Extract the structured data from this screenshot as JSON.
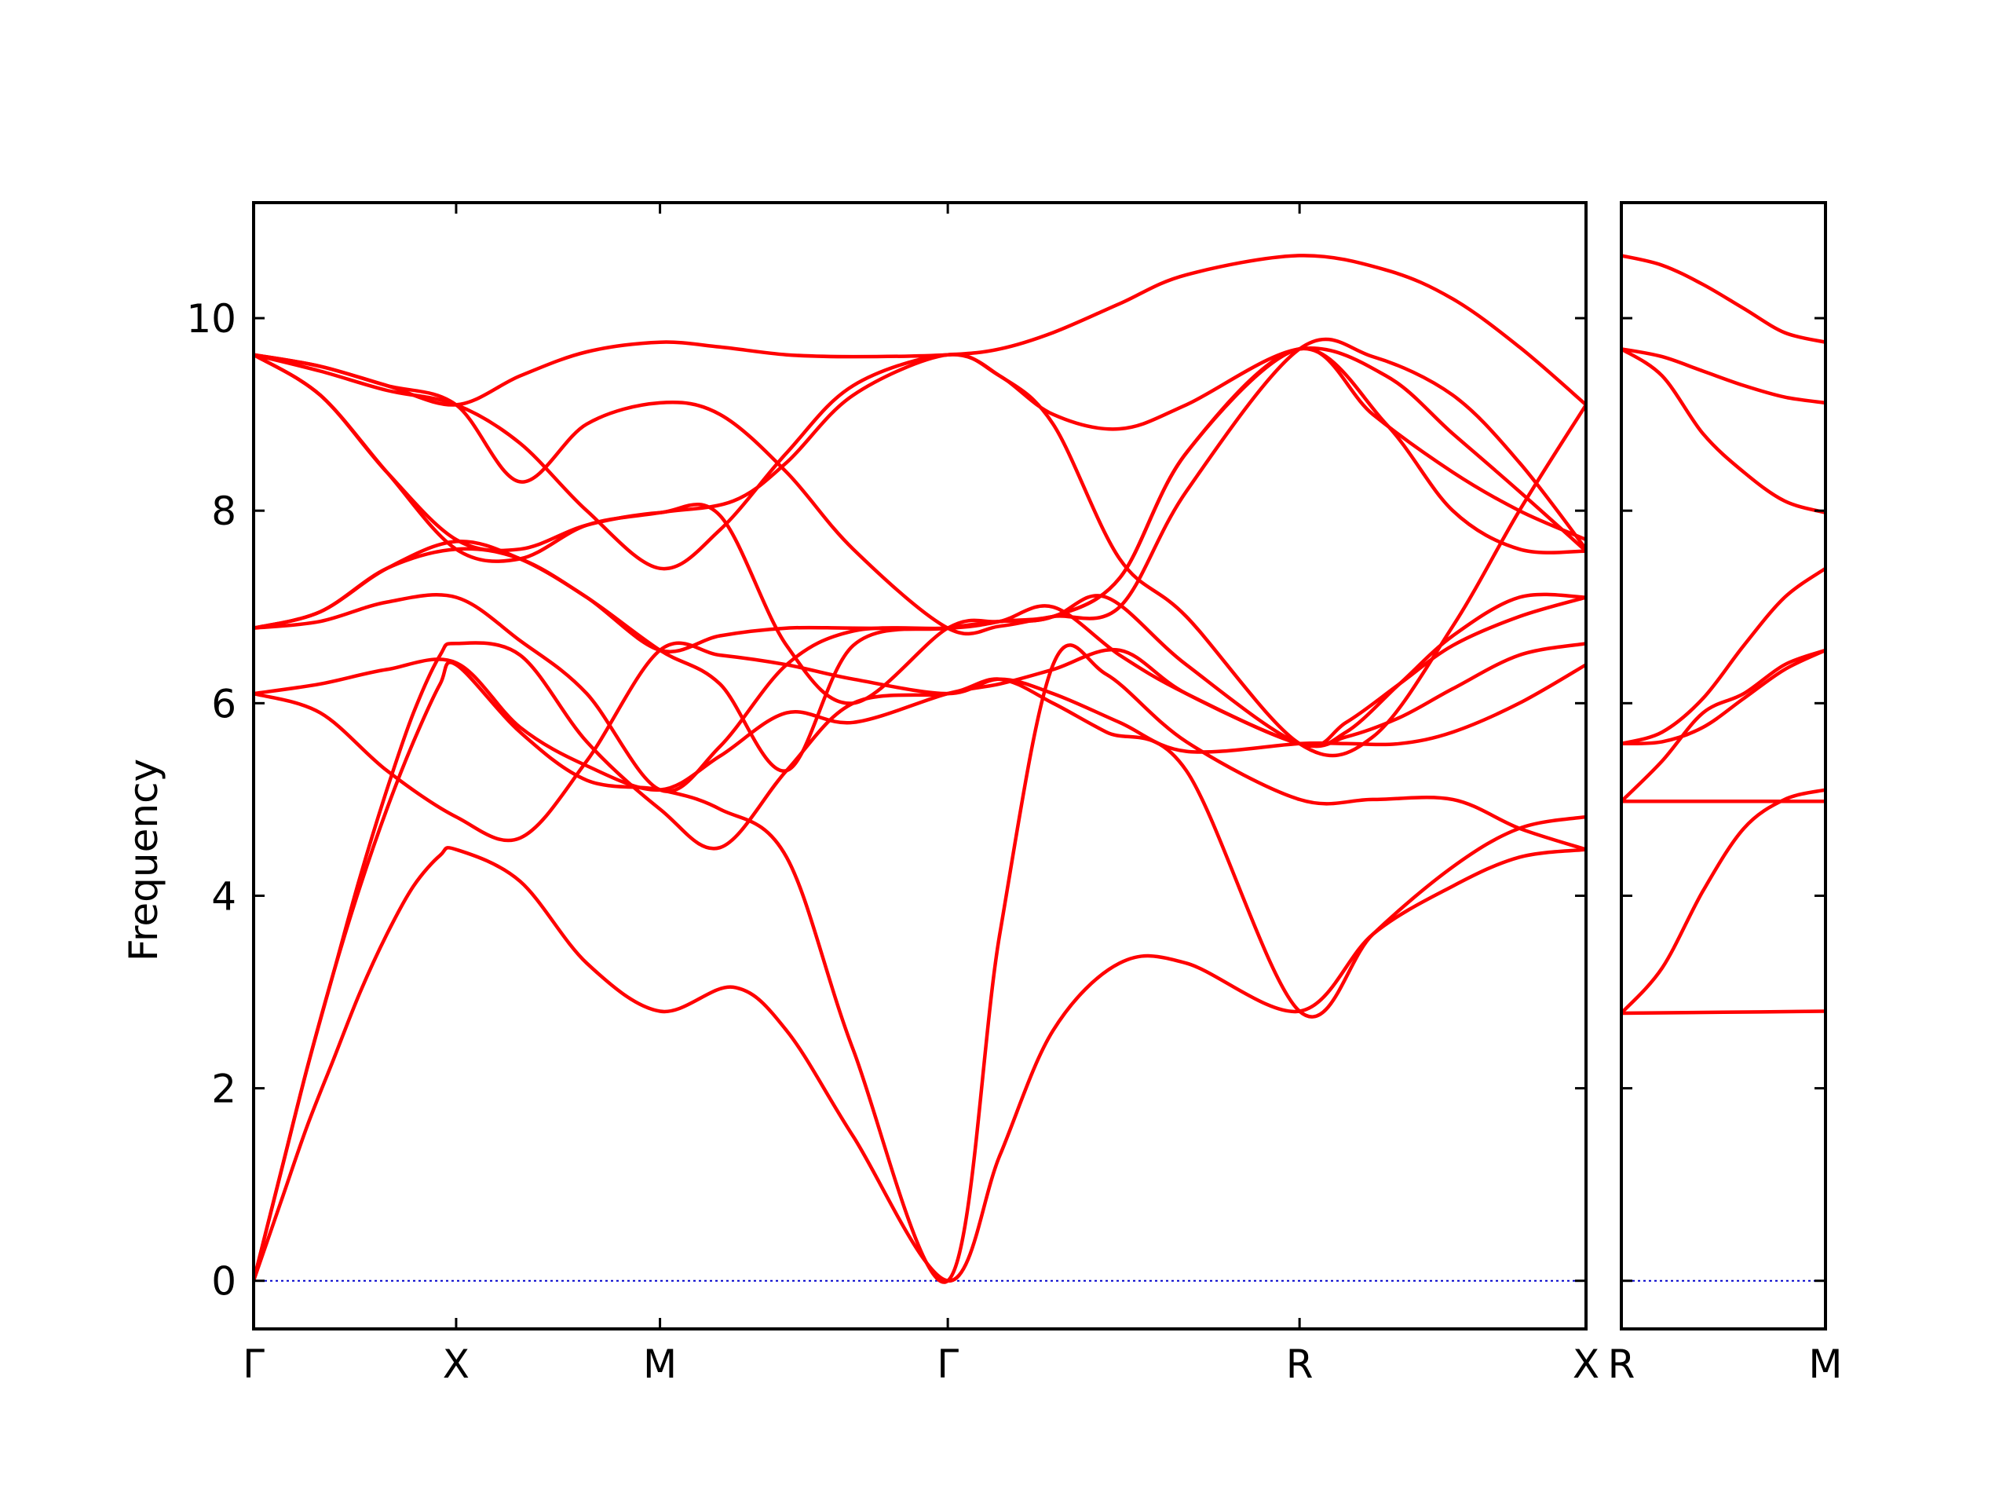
{
  "chart_data": {
    "type": "line",
    "ylabel": "Frequency",
    "ylim": [
      -0.5,
      11.2
    ],
    "y_ticks": [
      "0",
      "2",
      "4",
      "6",
      "8",
      "10"
    ],
    "grid": false,
    "colors": {
      "band": "#ff0000",
      "zero_line": "#0000cc",
      "frame": "#000000"
    },
    "panels": [
      {
        "id": "main",
        "xlim": [
          0,
          1000
        ],
        "high_symmetry_points": [
          {
            "label": "Γ",
            "x": 0
          },
          {
            "label": "X",
            "x": 152
          },
          {
            "label": "M",
            "x": 305
          },
          {
            "label": "Γ",
            "x": 521
          },
          {
            "label": "R",
            "x": 785
          },
          {
            "label": "X",
            "x": 1000
          }
        ],
        "bands": [
          {
            "x": [
              0,
              20,
              40,
              60,
              80,
              100,
              120,
              140,
              152,
              200,
              250,
              305,
              360,
              400,
              450,
              521,
              560,
              600,
              650,
              700,
              785,
              840,
              900,
              950,
              1000
            ],
            "y": [
              0,
              0.8,
              1.6,
              2.3,
              3.0,
              3.6,
              4.1,
              4.42,
              4.48,
              4.15,
              3.3,
              2.8,
              3.05,
              2.6,
              1.5,
              0,
              1.3,
              2.6,
              3.3,
              3.3,
              2.8,
              3.6,
              4.1,
              4.4,
              4.48
            ]
          },
          {
            "x": [
              0,
              20,
              40,
              60,
              80,
              100,
              120,
              140,
              152,
              200,
              250,
              305,
              350,
              400,
              450,
              521,
              560,
              600,
              640,
              700,
              785,
              840,
              900,
              950,
              1000
            ],
            "y": [
              0,
              1.1,
              2.2,
              3.2,
              4.1,
              4.9,
              5.6,
              6.2,
              6.4,
              5.7,
              5.2,
              5.1,
              4.9,
              4.4,
              2.4,
              0,
              3.6,
              6.4,
              6.3,
              5.6,
              5.0,
              5.0,
              5.0,
              4.7,
              4.48
            ]
          },
          {
            "x": [
              0,
              20,
              40,
              60,
              80,
              100,
              120,
              140,
              152,
              200,
              250,
              305,
              350,
              400,
              450,
              521,
              560,
              600,
              640,
              700,
              785,
              840,
              900,
              950,
              1000
            ],
            "y": [
              0,
              1.1,
              2.2,
              3.2,
              4.2,
              5.1,
              5.9,
              6.5,
              6.62,
              6.5,
              5.6,
              4.9,
              4.5,
              5.3,
              6.0,
              6.1,
              6.25,
              6.0,
              5.7,
              5.3,
              2.8,
              3.6,
              4.3,
              4.7,
              4.82
            ]
          },
          {
            "x": [
              0,
              50,
              100,
              152,
              200,
              250,
              305,
              350,
              400,
              450,
              521,
              560,
              600,
              650,
              700,
              785,
              820,
              860,
              900,
              950,
              1000
            ],
            "y": [
              6.1,
              5.9,
              5.3,
              4.82,
              4.6,
              5.4,
              6.55,
              6.5,
              6.4,
              6.25,
              6.1,
              6.25,
              6.1,
              5.8,
              5.5,
              5.58,
              5.58,
              5.58,
              5.7,
              6.0,
              6.4
            ]
          },
          {
            "x": [
              0,
              50,
              100,
              152,
              200,
              250,
              305,
              350,
              400,
              450,
              521,
              560,
              600,
              650,
              700,
              785,
              820,
              860,
              900,
              950,
              1000
            ],
            "y": [
              6.1,
              6.2,
              6.35,
              6.42,
              5.75,
              5.35,
              5.1,
              5.45,
              5.9,
              5.8,
              6.1,
              6.2,
              6.35,
              6.55,
              6.1,
              5.58,
              5.65,
              5.85,
              6.15,
              6.5,
              6.62
            ]
          },
          {
            "x": [
              0,
              50,
              100,
              152,
              200,
              250,
              305,
              350,
              400,
              450,
              521,
              560,
              600,
              640,
              700,
              785,
              820,
              860,
              900,
              950,
              1000
            ],
            "y": [
              6.78,
              6.85,
              7.05,
              7.1,
              6.65,
              6.1,
              5.1,
              5.55,
              6.4,
              6.75,
              6.78,
              6.85,
              6.9,
              7.1,
              6.4,
              5.58,
              5.8,
              6.2,
              6.6,
              6.9,
              7.1
            ]
          },
          {
            "x": [
              0,
              50,
              100,
              152,
              200,
              250,
              305,
              350,
              400,
              450,
              521,
              560,
              600,
              650,
              700,
              785,
              820,
              860,
              900,
              950,
              1000
            ],
            "y": [
              6.78,
              6.95,
              7.4,
              7.6,
              7.5,
              7.1,
              6.55,
              6.7,
              6.78,
              6.78,
              6.78,
              6.85,
              7.0,
              6.5,
              6.1,
              5.58,
              5.7,
              6.2,
              6.7,
              7.1,
              7.1
            ]
          },
          {
            "x": [
              0,
              50,
              100,
              152,
              200,
              250,
              305,
              350,
              400,
              450,
              521,
              560,
              600,
              650,
              700,
              785,
              840,
              900,
              950,
              1000
            ],
            "y": [
              6.78,
              6.95,
              7.4,
              7.68,
              7.5,
              7.1,
              6.55,
              6.2,
              5.3,
              6.6,
              6.78,
              6.85,
              6.9,
              7.3,
              8.6,
              9.68,
              9.0,
              8.4,
              8.0,
              7.7
            ]
          },
          {
            "x": [
              0,
              50,
              100,
              152,
              200,
              250,
              305,
              350,
              400,
              450,
              521,
              560,
              600,
              650,
              700,
              785,
              850,
              900,
              950,
              1000
            ],
            "y": [
              9.62,
              9.2,
              8.4,
              7.7,
              7.6,
              7.85,
              7.98,
              7.95,
              6.6,
              6.0,
              6.78,
              6.85,
              6.9,
              7.3,
              8.6,
              9.68,
              8.9,
              8.0,
              7.6,
              7.58
            ]
          },
          {
            "x": [
              0,
              50,
              100,
              152,
              200,
              250,
              305,
              360,
              400,
              450,
              521,
              560,
              600,
              650,
              700,
              785,
              850,
              900,
              950,
              1000
            ],
            "y": [
              9.62,
              9.2,
              8.4,
              7.6,
              7.5,
              7.85,
              7.98,
              8.1,
              8.5,
              9.2,
              9.62,
              9.4,
              9.0,
              8.85,
              9.1,
              9.68,
              9.4,
              8.8,
              8.2,
              7.58
            ]
          },
          {
            "x": [
              0,
              50,
              100,
              152,
              200,
              250,
              305,
              350,
              400,
              450,
              521,
              560,
              600,
              650,
              700,
              785,
              840,
              900,
              950,
              1000
            ],
            "y": [
              9.62,
              9.45,
              9.25,
              9.1,
              8.7,
              8.0,
              7.4,
              7.8,
              8.6,
              9.3,
              9.62,
              9.4,
              8.9,
              7.5,
              6.9,
              5.58,
              5.65,
              6.8,
              8.0,
              9.1
            ]
          },
          {
            "x": [
              0,
              50,
              100,
              152,
              200,
              250,
              305,
              350,
              400,
              450,
              521,
              560,
              600,
              650,
              700,
              785,
              840,
              900,
              950,
              1000
            ],
            "y": [
              9.62,
              9.5,
              9.3,
              9.1,
              8.3,
              8.9,
              9.12,
              9.0,
              8.4,
              7.6,
              6.78,
              6.8,
              6.9,
              7.0,
              8.2,
              9.68,
              9.6,
              9.2,
              8.5,
              7.6
            ]
          },
          {
            "x": [
              0,
              50,
              100,
              152,
              200,
              250,
              305,
              350,
              400,
              450,
              521,
              560,
              600,
              650,
              700,
              785,
              850,
              900,
              950,
              1000
            ],
            "y": [
              9.62,
              9.5,
              9.3,
              9.1,
              9.4,
              9.65,
              9.75,
              9.7,
              9.62,
              9.6,
              9.62,
              9.68,
              9.85,
              10.15,
              10.45,
              10.65,
              10.5,
              10.2,
              9.7,
              9.1
            ]
          }
        ]
      },
      {
        "id": "side",
        "xlim": [
          0,
          100
        ],
        "high_symmetry_points": [
          {
            "label": "R",
            "x": 0
          },
          {
            "label": "M",
            "x": 100
          }
        ],
        "bands": [
          {
            "x": [
              0,
              50,
              100
            ],
            "y": [
              2.78,
              2.79,
              2.8
            ]
          },
          {
            "x": [
              0,
              20,
              40,
              60,
              80,
              100
            ],
            "y": [
              2.78,
              3.25,
              4.05,
              4.7,
              5.0,
              5.1
            ]
          },
          {
            "x": [
              0,
              50,
              100
            ],
            "y": [
              4.98,
              4.98,
              4.98
            ]
          },
          {
            "x": [
              0,
              20,
              40,
              60,
              80,
              100
            ],
            "y": [
              4.98,
              5.4,
              5.9,
              6.1,
              6.4,
              6.55
            ]
          },
          {
            "x": [
              0,
              20,
              40,
              60,
              80,
              100
            ],
            "y": [
              5.58,
              5.6,
              5.75,
              6.05,
              6.35,
              6.55
            ]
          },
          {
            "x": [
              0,
              20,
              40,
              60,
              80,
              100
            ],
            "y": [
              5.58,
              5.7,
              6.05,
              6.6,
              7.1,
              7.4
            ]
          },
          {
            "x": [
              0,
              20,
              40,
              60,
              80,
              100
            ],
            "y": [
              9.68,
              9.4,
              8.8,
              8.4,
              8.1,
              7.98
            ]
          },
          {
            "x": [
              0,
              20,
              40,
              60,
              80,
              100
            ],
            "y": [
              9.68,
              9.6,
              9.45,
              9.3,
              9.18,
              9.12
            ]
          },
          {
            "x": [
              0,
              20,
              40,
              60,
              80,
              100
            ],
            "y": [
              10.65,
              10.55,
              10.35,
              10.1,
              9.85,
              9.75
            ]
          }
        ]
      }
    ]
  }
}
